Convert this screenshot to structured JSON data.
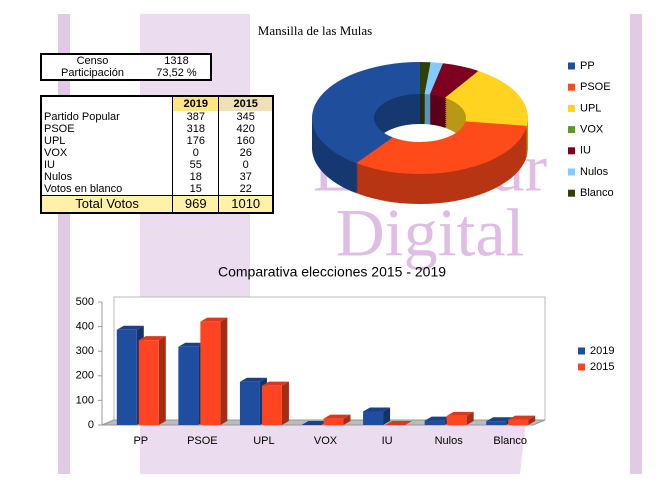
{
  "title": "Mansilla de las Mulas",
  "watermark": [
    "LeónSur",
    "Digital"
  ],
  "summary": {
    "rows": [
      [
        "Censo",
        1318
      ],
      [
        "Participación",
        "73,52 %"
      ]
    ]
  },
  "table": {
    "header": [
      "2019",
      "2015"
    ],
    "rows": [
      [
        "Partido Popular",
        387,
        345
      ],
      [
        "PSOE",
        318,
        420
      ],
      [
        "UPL",
        176,
        160
      ],
      [
        "VOX",
        0,
        26
      ],
      [
        "IU",
        55,
        0
      ],
      [
        "Nulos",
        18,
        37
      ],
      [
        "Votos en blanco",
        15,
        22
      ]
    ],
    "total": [
      "Total Votos",
      969,
      1010
    ]
  },
  "chart_data": [
    {
      "type": "pie",
      "donut": true,
      "categories": [
        "PP",
        "PSOE",
        "UPL",
        "VOX",
        "IU",
        "Nulos",
        "Blanco"
      ],
      "values": [
        387,
        318,
        176,
        0,
        55,
        18,
        15
      ],
      "colors": [
        "#1f4e9c",
        "#ff4a1a",
        "#ffd320",
        "#579d1c",
        "#7e0021",
        "#83caff",
        "#314004"
      ],
      "legend": "right"
    },
    {
      "type": "bar",
      "title": "Comparativa elecciones 2015 - 2019",
      "categories": [
        "PP",
        "PSOE",
        "UPL",
        "VOX",
        "IU",
        "Nulos",
        "Blanco"
      ],
      "series": [
        {
          "name": "2019",
          "color": "#1f4ea0",
          "values": [
            387,
            318,
            176,
            0,
            55,
            18,
            15
          ]
        },
        {
          "name": "2015",
          "color": "#ff4422",
          "values": [
            345,
            420,
            160,
            26,
            0,
            37,
            22
          ]
        }
      ],
      "ylim": [
        0,
        500
      ],
      "yticks": [
        0,
        100,
        200,
        300,
        400,
        500
      ],
      "grid": false,
      "legend": "right"
    }
  ]
}
